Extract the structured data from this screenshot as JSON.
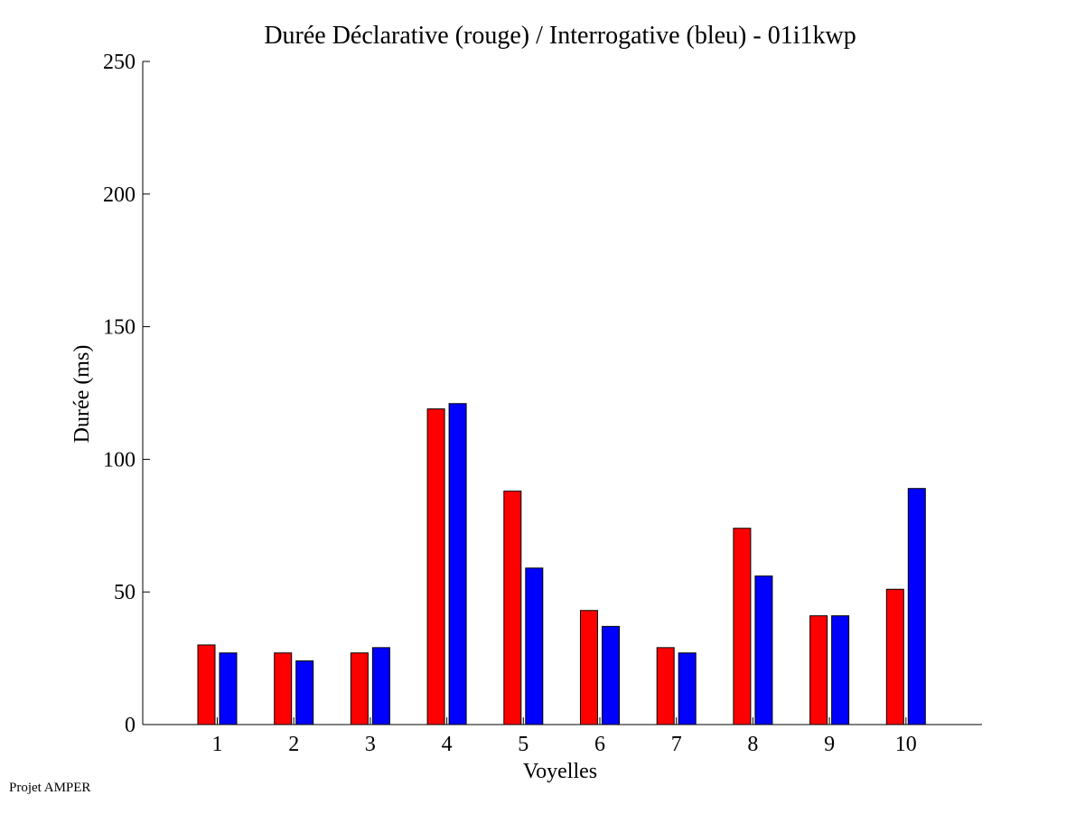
{
  "footer": "Projet AMPER",
  "chart_data": {
    "type": "bar",
    "title": "Durée Déclarative (rouge) / Interrogative (bleu) - 01i1kwp",
    "xlabel": "Voyelles",
    "ylabel": "Durée (ms)",
    "ylim": [
      0,
      250
    ],
    "yticks": [
      0,
      50,
      100,
      150,
      200,
      250
    ],
    "categories": [
      "1",
      "2",
      "3",
      "4",
      "5",
      "6",
      "7",
      "8",
      "9",
      "10"
    ],
    "grid": false,
    "legend": "none",
    "series": [
      {
        "color": "#ff0000",
        "values": [
          30,
          27,
          27,
          119,
          88,
          43,
          29,
          74,
          41,
          51
        ]
      },
      {
        "color": "#0000ff",
        "values": [
          27,
          24,
          29,
          121,
          59,
          37,
          27,
          56,
          41,
          89
        ]
      }
    ]
  }
}
